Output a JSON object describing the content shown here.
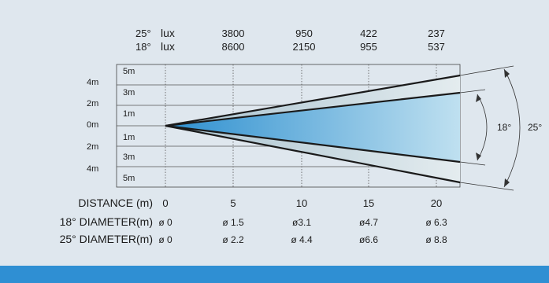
{
  "lux_rows": [
    {
      "angle": "25°",
      "unit": "lux",
      "values": [
        "3800",
        "950",
        "422",
        "237"
      ]
    },
    {
      "angle": "18°",
      "unit": "lux",
      "values": [
        "8600",
        "2150",
        "955",
        "537"
      ]
    }
  ],
  "left_scale": [
    "4m",
    "2m",
    "0m",
    "2m",
    "4m"
  ],
  "inner_scale": [
    "5m",
    "3m",
    "1m",
    "1m",
    "3m",
    "5m"
  ],
  "angle_labels": {
    "inner": "18°",
    "outer": "25°"
  },
  "distance_row": {
    "label": "DISTANCE (m)",
    "values": [
      "0",
      "5",
      "10",
      "15",
      "20"
    ]
  },
  "diameter_rows": [
    {
      "label": "18° DIAMETER(m)",
      "values": [
        "ø 0",
        "ø 1.5",
        "ø3.1",
        "ø4.7",
        "ø 6.3"
      ]
    },
    {
      "label": "25° DIAMETER(m)",
      "values": [
        "ø 0",
        "ø 2.2",
        "ø 4.4",
        "ø6.6",
        "ø 8.8"
      ]
    }
  ],
  "colors": {
    "background": "#dfe7ee",
    "footer_bar": "#2f8fd3",
    "beam_inner": "#4aa6d8",
    "beam_outer": "#c9d6dc",
    "line": "#1a1a1a"
  }
}
